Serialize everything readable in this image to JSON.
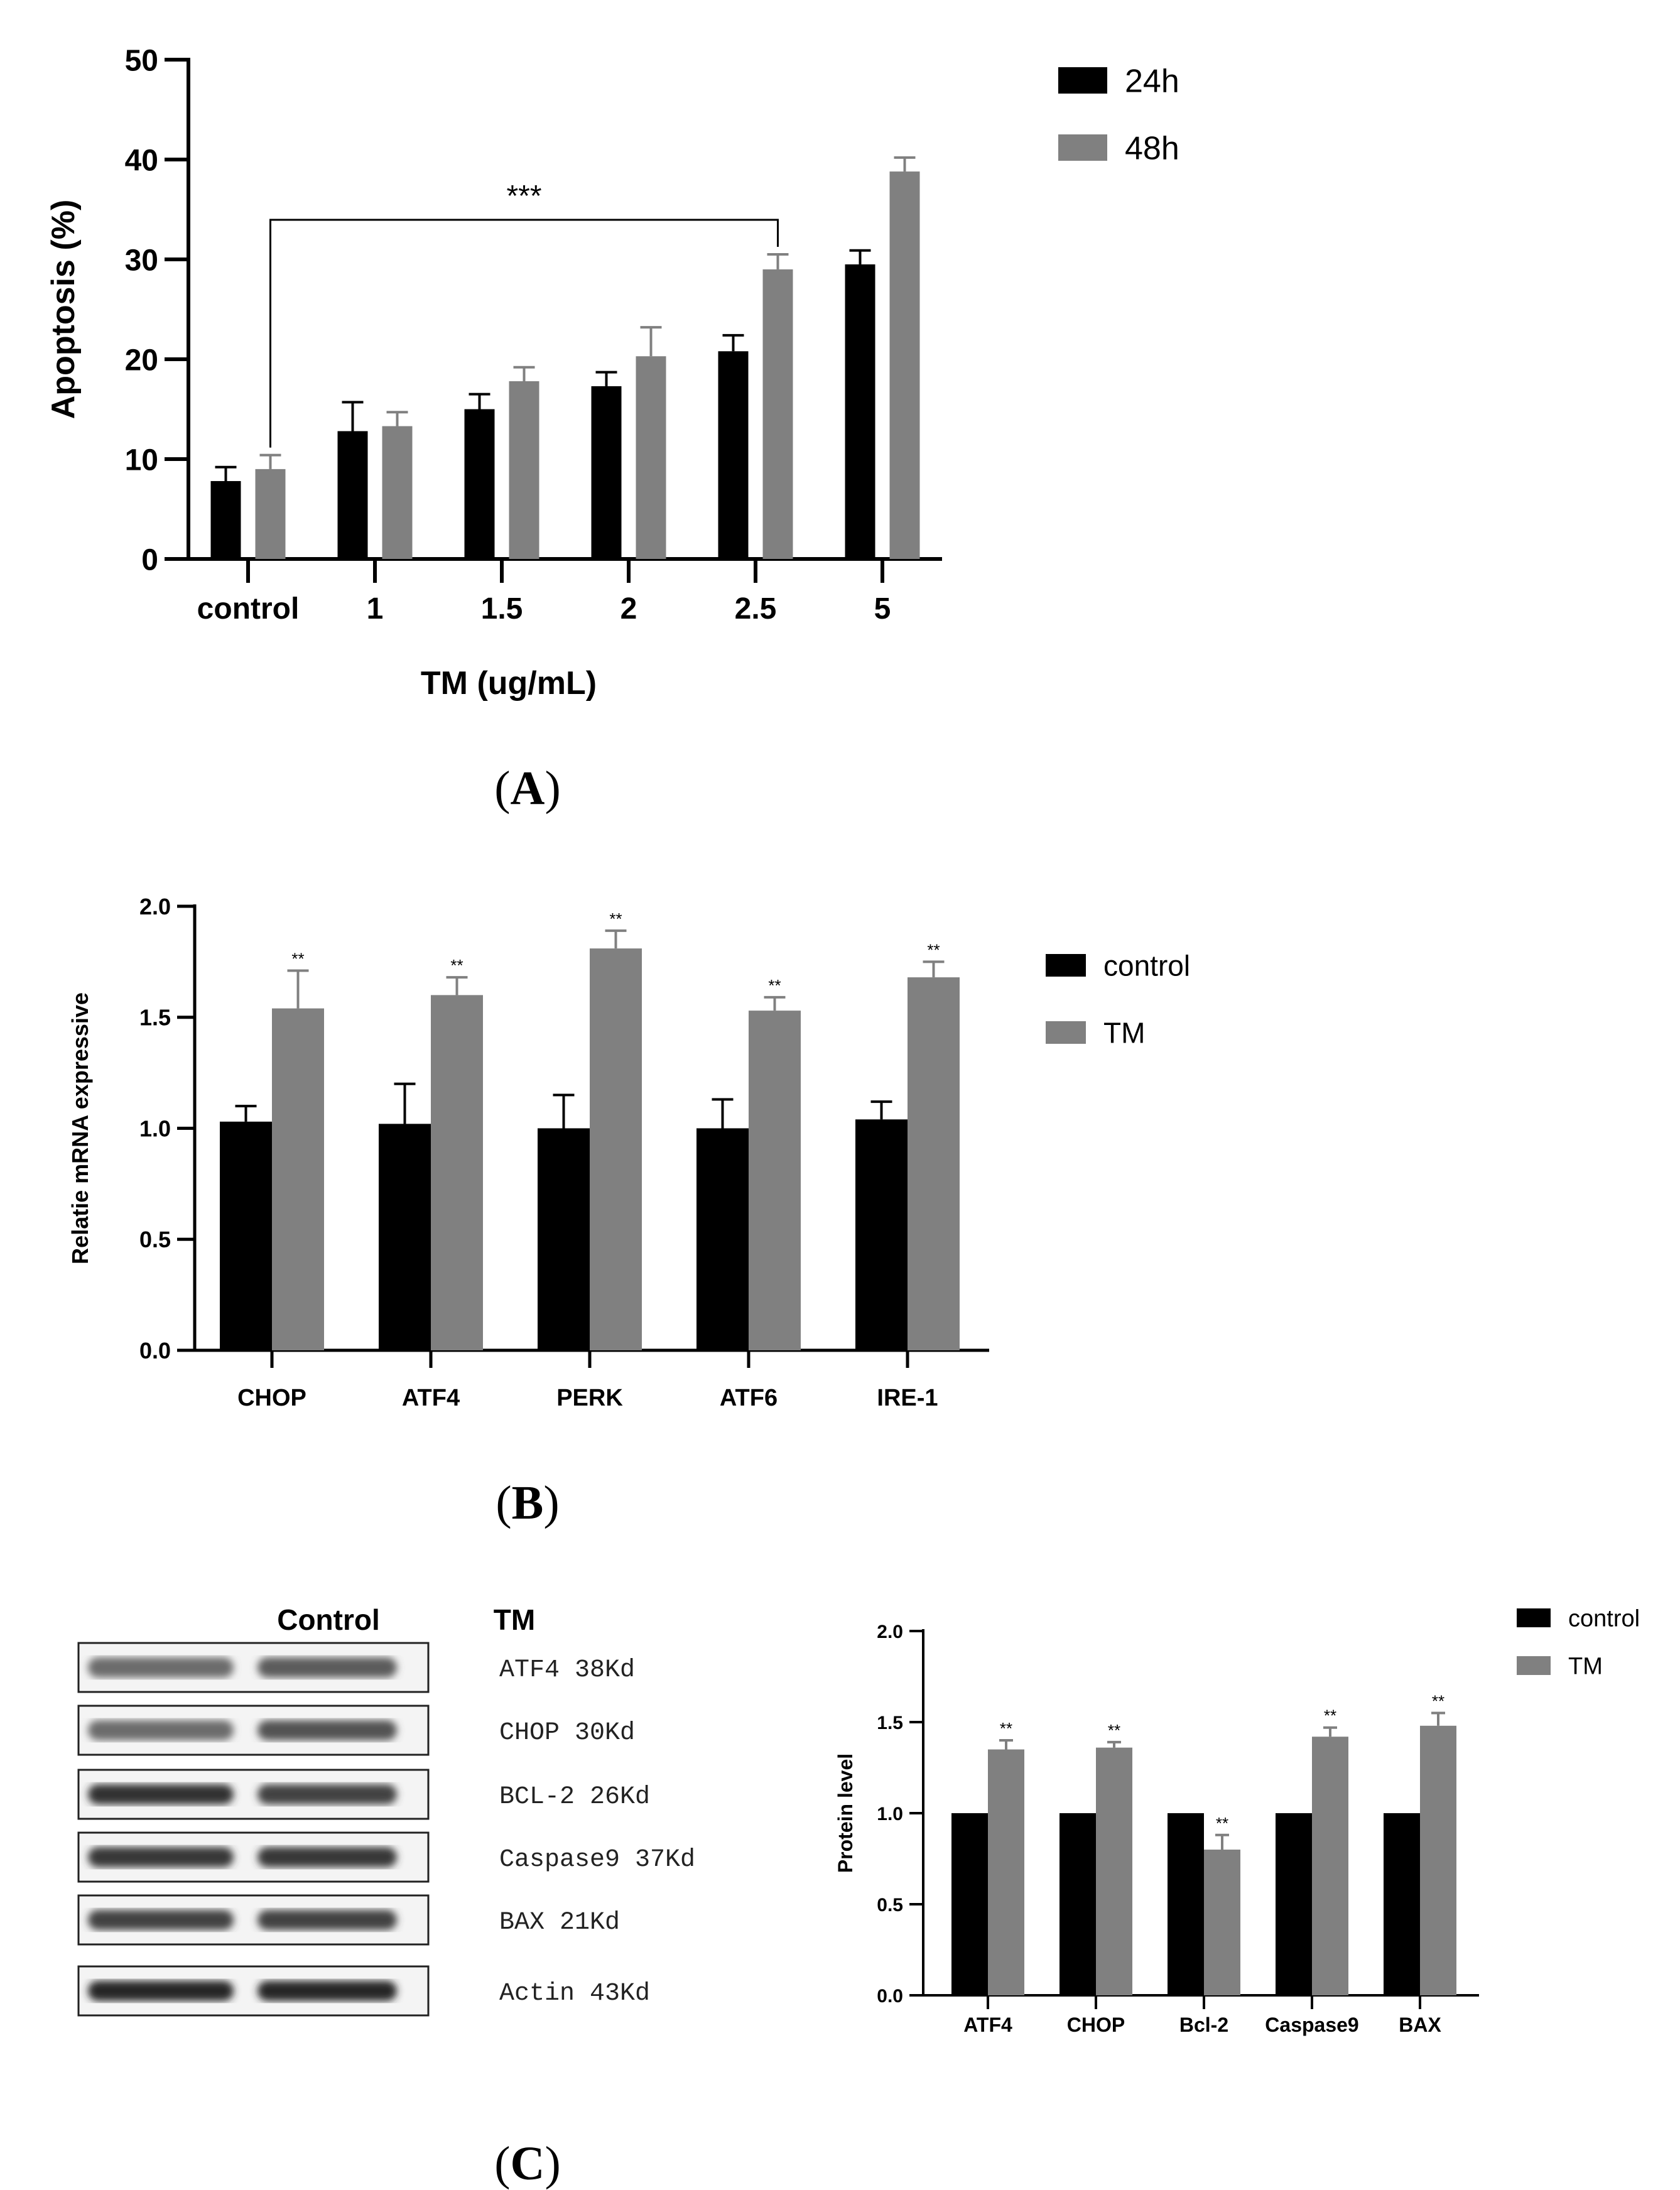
{
  "chart_data": [
    {
      "id": "A",
      "type": "bar",
      "panel_label": "A",
      "title": "",
      "xlabel": "TM (ug/mL)",
      "ylabel": "Apoptosis (%)",
      "ylim": [
        0,
        50
      ],
      "yticks": [
        "0",
        "10",
        "20",
        "30",
        "40",
        "50"
      ],
      "categories": [
        "control",
        "1",
        "1.5",
        "2",
        "2.5",
        "5"
      ],
      "series": [
        {
          "name": "24h",
          "color": "#000000",
          "values": [
            7.8,
            12.8,
            15.0,
            17.3,
            20.8,
            29.5
          ],
          "errors": [
            1.4,
            2.9,
            1.5,
            1.4,
            1.6,
            1.4
          ]
        },
        {
          "name": "48h",
          "color": "#808080",
          "values": [
            9.0,
            13.3,
            17.8,
            20.3,
            29.0,
            38.8
          ],
          "errors": [
            1.4,
            1.4,
            1.4,
            2.9,
            1.5,
            1.4
          ]
        }
      ],
      "legend_position": "top-right",
      "significance": [
        {
          "label": "***",
          "from": "control",
          "to": "2.5"
        }
      ]
    },
    {
      "id": "B",
      "type": "bar",
      "panel_label": "B",
      "title": "",
      "xlabel": "",
      "ylabel": "Relatie mRNA expressive",
      "ylim": [
        0,
        2
      ],
      "yticks": [
        "0.0",
        "0.5",
        "1.0",
        "1.5",
        "2.0"
      ],
      "categories": [
        "CHOP",
        "ATF4",
        "PERK",
        "ATF6",
        "IRE-1"
      ],
      "series": [
        {
          "name": "control",
          "color": "#000000",
          "values": [
            1.03,
            1.02,
            1.0,
            1.0,
            1.04
          ],
          "errors": [
            0.07,
            0.18,
            0.15,
            0.13,
            0.08
          ]
        },
        {
          "name": "TM",
          "color": "#808080",
          "values": [
            1.54,
            1.6,
            1.81,
            1.53,
            1.68
          ],
          "errors": [
            0.17,
            0.08,
            0.08,
            0.06,
            0.07
          ]
        }
      ],
      "annotations": [
        "**",
        "**",
        "**",
        "**",
        "**"
      ],
      "legend_position": "top-right"
    },
    {
      "id": "C",
      "type": "bar",
      "panel_label": "C",
      "title": "",
      "xlabel": "",
      "ylabel": "Protein level",
      "ylim": [
        0,
        2
      ],
      "yticks": [
        "0.0",
        "0.5",
        "1.0",
        "1.5",
        "2.0"
      ],
      "categories": [
        "ATF4",
        "CHOP",
        "Bcl-2",
        "Caspase9",
        "BAX"
      ],
      "series": [
        {
          "name": "control",
          "color": "#000000",
          "values": [
            1.0,
            1.0,
            1.0,
            1.0,
            1.0
          ],
          "errors": [
            0,
            0,
            0,
            0,
            0
          ]
        },
        {
          "name": "TM",
          "color": "#808080",
          "values": [
            1.35,
            1.36,
            0.8,
            1.42,
            1.48
          ],
          "errors": [
            0.05,
            0.03,
            0.08,
            0.05,
            0.07
          ]
        }
      ],
      "annotations": [
        "**",
        "**",
        "**",
        "**",
        "**"
      ],
      "legend_position": "top-right"
    }
  ],
  "western_blot": {
    "col_labels": [
      "Control",
      "TM"
    ],
    "bands": [
      {
        "name": "ATF4 38Kd",
        "intensity": [
          0.6,
          0.7
        ]
      },
      {
        "name": "CHOP 30Kd",
        "intensity": [
          0.6,
          0.75
        ]
      },
      {
        "name": "BCL-2 26Kd",
        "intensity": [
          0.95,
          0.85
        ]
      },
      {
        "name": "Caspase9 37Kd",
        "intensity": [
          0.9,
          0.9
        ]
      },
      {
        "name": "BAX 21Kd",
        "intensity": [
          0.85,
          0.85
        ]
      },
      {
        "name": "Actin 43Kd",
        "intensity": [
          1.0,
          1.0
        ]
      }
    ]
  }
}
